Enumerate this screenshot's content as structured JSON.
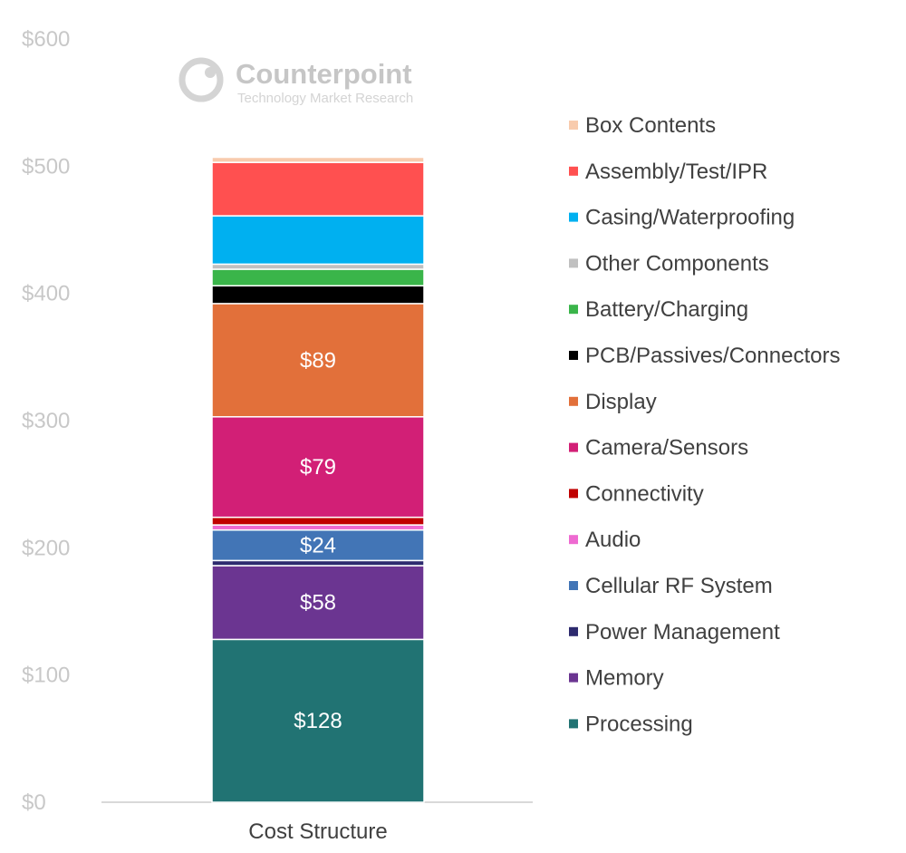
{
  "watermark": {
    "name": "Counterpoint",
    "tagline": "Technology Market Research"
  },
  "chart_data": {
    "type": "bar",
    "stacked": true,
    "categories": [
      "Cost Structure"
    ],
    "ylim": [
      0,
      600
    ],
    "yticks": [
      0,
      100,
      200,
      300,
      400,
      500,
      600
    ],
    "ytick_prefix": "$",
    "grid": false,
    "legend_position": "right",
    "series": [
      {
        "name": "Processing",
        "values": [
          128
        ],
        "color": "#217373",
        "label": "$128"
      },
      {
        "name": "Memory",
        "values": [
          58
        ],
        "color": "#6b3591",
        "label": "$58"
      },
      {
        "name": "Power Management",
        "values": [
          4
        ],
        "color": "#2d2a6e"
      },
      {
        "name": "Cellular RF System",
        "values": [
          24
        ],
        "color": "#4275b6",
        "label": "$24"
      },
      {
        "name": "Audio",
        "values": [
          4
        ],
        "color": "#ee6ad1"
      },
      {
        "name": "Connectivity",
        "values": [
          6
        ],
        "color": "#c00000"
      },
      {
        "name": "Camera/Sensors",
        "values": [
          79
        ],
        "color": "#d21f76",
        "label": "$79"
      },
      {
        "name": "Display",
        "values": [
          89
        ],
        "color": "#e2703a",
        "label": "$89"
      },
      {
        "name": "PCB/Passives/Connectors",
        "values": [
          14
        ],
        "color": "#000000"
      },
      {
        "name": "Battery/Charging",
        "values": [
          13
        ],
        "color": "#3ab54a"
      },
      {
        "name": "Other Components",
        "values": [
          4
        ],
        "color": "#c0c0c0"
      },
      {
        "name": "Casing/Waterproofing",
        "values": [
          38
        ],
        "color": "#00b0f0"
      },
      {
        "name": "Assembly/Test/IPR",
        "values": [
          42
        ],
        "color": "#ff5050"
      },
      {
        "name": "Box Contents",
        "values": [
          4
        ],
        "color": "#f8cbad"
      }
    ]
  }
}
